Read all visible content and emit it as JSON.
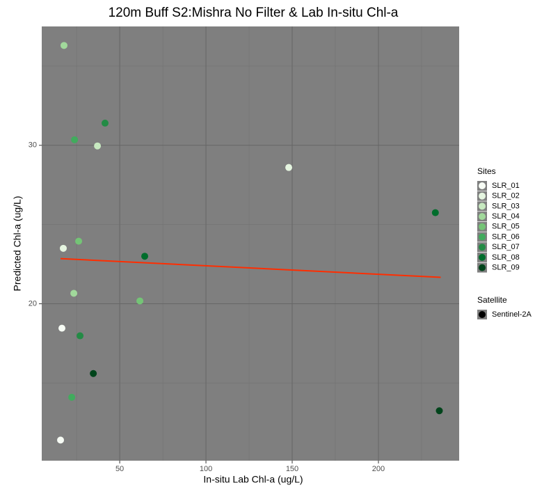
{
  "chart_data": {
    "type": "scatter",
    "title": "120m Buff S2:Mishra No Filter & Lab In-situ Chl-a",
    "x_label": "In-situ Lab Chl-a (ug/L)",
    "y_label": "Predicted Chl-a (ug/L)",
    "xlim": [
      4.8,
      246.8
    ],
    "ylim": [
      10.1,
      37.5
    ],
    "xticks": [
      50,
      100,
      150,
      200
    ],
    "yticks": [
      20,
      30
    ],
    "xminor": [
      25,
      75,
      125,
      175,
      225
    ],
    "yminor": [
      15,
      25,
      35
    ],
    "grid": true,
    "legend_title": "Sites",
    "series": [
      {
        "name": "SLR_01",
        "color": "#f7fcf5",
        "x": [
          16.5,
          15.7
        ],
        "values": [
          18.46,
          11.4
        ]
      },
      {
        "name": "SLR_02",
        "color": "#e5f5e0",
        "x": [
          148,
          17.3
        ],
        "values": [
          28.6,
          23.5
        ]
      },
      {
        "name": "SLR_03",
        "color": "#c7e9c0",
        "x": [
          37.1
        ],
        "values": [
          29.96
        ]
      },
      {
        "name": "SLR_04",
        "color": "#a1d99b",
        "x": [
          17.7,
          23.4
        ],
        "values": [
          36.3,
          20.66
        ]
      },
      {
        "name": "SLR_05",
        "color": "#74c476",
        "x": [
          26.2,
          61.7
        ],
        "values": [
          23.95,
          20.18
        ]
      },
      {
        "name": "SLR_06",
        "color": "#41ab5d",
        "x": [
          23.8,
          22.2
        ],
        "values": [
          30.35,
          14.1
        ]
      },
      {
        "name": "SLR_07",
        "color": "#238b45",
        "x": [
          41.5,
          27
        ],
        "values": [
          31.4,
          17.98
        ]
      },
      {
        "name": "SLR_08",
        "color": "#006d2c",
        "x": [
          233,
          64.5
        ],
        "values": [
          25.75,
          23.0
        ]
      },
      {
        "name": "SLR_09",
        "color": "#00441b",
        "x": [
          34.7,
          235.3
        ],
        "values": [
          15.6,
          13.25
        ]
      }
    ],
    "trendline": {
      "color": "#ff2d00",
      "x": [
        15.7,
        236.1
      ],
      "values": [
        22.85,
        21.67
      ]
    },
    "shape_legend": {
      "title": "Satellite",
      "items": [
        "Sentinel-2A"
      ],
      "color": "#000000"
    }
  }
}
